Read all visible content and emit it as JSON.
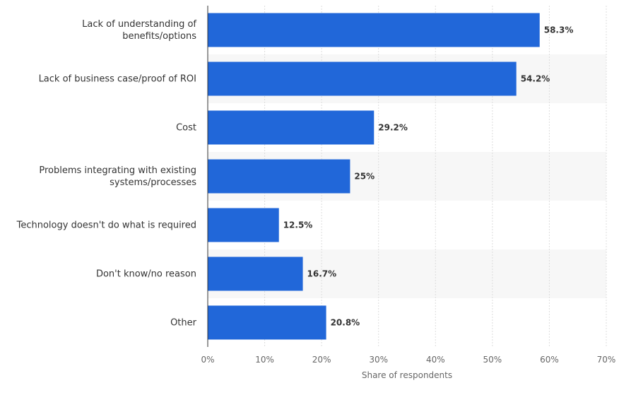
{
  "chart_data": {
    "type": "bar",
    "orientation": "horizontal",
    "categories": [
      [
        "Lack of understanding of",
        "benefits/options"
      ],
      [
        "Lack of business case/proof of ROI"
      ],
      [
        "Cost"
      ],
      [
        "Problems integrating with existing",
        "systems/processes"
      ],
      [
        "Technology doesn't do what is required"
      ],
      [
        "Don't know/no reason"
      ],
      [
        "Other"
      ]
    ],
    "values": [
      58.3,
      54.2,
      29.2,
      25,
      12.5,
      16.7,
      20.8
    ],
    "value_labels": [
      "58.3%",
      "54.2%",
      "29.2%",
      "25%",
      "12.5%",
      "16.7%",
      "20.8%"
    ],
    "xlabel": "Share of respondents",
    "xlim": [
      0,
      70
    ],
    "xticks": [
      0,
      10,
      20,
      30,
      40,
      50,
      60,
      70
    ],
    "xtick_labels": [
      "0%",
      "10%",
      "20%",
      "30%",
      "40%",
      "50%",
      "60%",
      "70%"
    ],
    "grid": true,
    "colors": {
      "bar": "#2167d9",
      "band": "#f7f7f7",
      "grid": "#dddddd",
      "axis": "#333333"
    }
  }
}
